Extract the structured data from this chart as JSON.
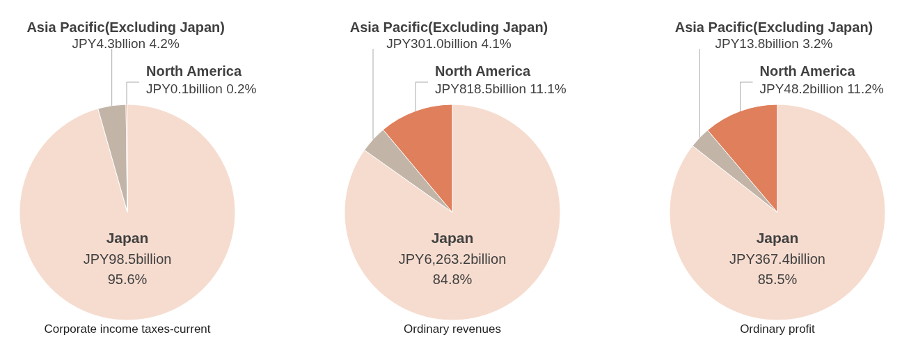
{
  "chart_data": [
    {
      "type": "pie",
      "title": "Corporate income taxes-current",
      "categories": [
        "Japan",
        "Asia Pacific(Excluding Japan)",
        "North America"
      ],
      "values": [
        95.6,
        4.2,
        0.2
      ],
      "colors": [
        "#f6dccf",
        "#c2b5a8",
        "#e07f5c"
      ],
      "value_labels": [
        "JPY98.5billion 95.6%",
        "JPY4.3bllion 4.2%",
        "JPY0.1billion 0.2%"
      ],
      "legend": false
    },
    {
      "type": "pie",
      "title": "Ordinary revenues",
      "categories": [
        "Japan",
        "Asia Pacific(Excluding Japan)",
        "North America"
      ],
      "values": [
        84.8,
        4.1,
        11.1
      ],
      "colors": [
        "#f6dccf",
        "#c2b5a8",
        "#e07f5c"
      ],
      "value_labels": [
        "JPY6,263.2billion 84.8%",
        "JPY301.0billion 4.1%",
        "JPY818.5billion 11.1%"
      ],
      "legend": false
    },
    {
      "type": "pie",
      "title": "Ordinary profit",
      "categories": [
        "Japan",
        "Asia Pacific(Excluding Japan)",
        "North America"
      ],
      "values": [
        85.5,
        3.2,
        11.2
      ],
      "colors": [
        "#f6dccf",
        "#c2b5a8",
        "#e07f5c"
      ],
      "value_labels": [
        "JPY367.4billion 85.5%",
        "JPY13.8billion 3.2%",
        "JPY48.2billion 11.2%"
      ],
      "legend": false
    }
  ]
}
